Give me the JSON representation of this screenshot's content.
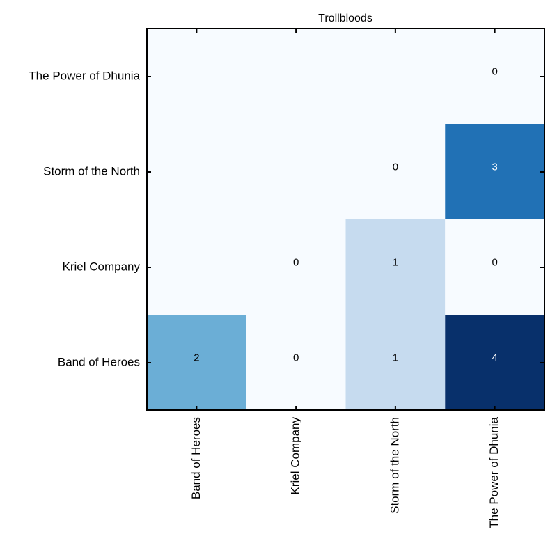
{
  "chart_data": {
    "type": "heatmap",
    "title": "Trollbloods",
    "x_categories": [
      "Band of Heroes",
      "Kriel Company",
      "Storm of the North",
      "The Power of Dhunia"
    ],
    "y_categories": [
      "The Power of Dhunia",
      "Storm of the North",
      "Kriel Company",
      "Band of Heroes"
    ],
    "values": [
      [
        null,
        null,
        null,
        0
      ],
      [
        null,
        null,
        0,
        3
      ],
      [
        null,
        0,
        1,
        0
      ],
      [
        2,
        0,
        1,
        4
      ]
    ],
    "vmin": 0,
    "vmax": 4,
    "colormap": "Blues",
    "colors": {
      "low": "#f7fbff",
      "high": "#08306b"
    },
    "grid": false
  }
}
